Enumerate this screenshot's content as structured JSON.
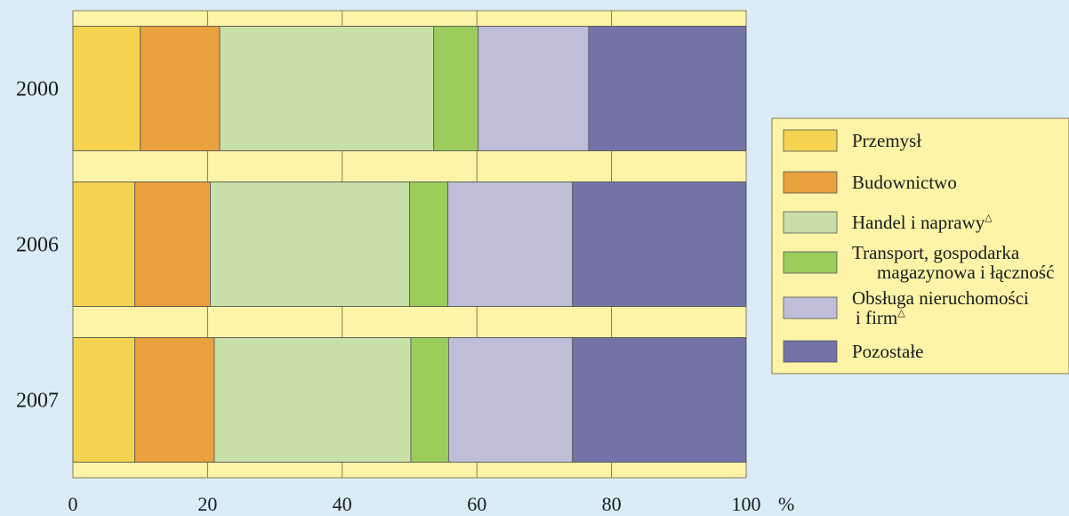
{
  "chart_data": {
    "type": "bar",
    "orientation": "horizontal",
    "stacked": true,
    "categories": [
      "2000",
      "2006",
      "2007"
    ],
    "series": [
      {
        "name": "Przemysł",
        "color": "#f5d24f",
        "values": [
          10,
          9.2,
          9.2
        ]
      },
      {
        "name": "Budownictwo",
        "color": "#e8a13c",
        "values": [
          11.8,
          11.2,
          11.8
        ]
      },
      {
        "name": "Handel i naprawy",
        "name_mark": "△",
        "color": "#c8dfa8",
        "values": [
          31.8,
          29.6,
          29.2
        ]
      },
      {
        "name": "Transport, gospodarka\nmagazynowa i łączność",
        "color": "#9ccc5c",
        "values": [
          6.6,
          5.7,
          5.6
        ]
      },
      {
        "name": "Obsługa nieruchomości\ni firm",
        "name_mark": "△",
        "color": "#c0bdd8",
        "values": [
          16.4,
          18.5,
          18.4
        ]
      },
      {
        "name": "Pozostałe",
        "color": "#7373a8",
        "values": [
          23.4,
          25.8,
          25.8
        ]
      }
    ],
    "xlim": [
      0,
      100
    ],
    "x_ticks": [
      "0",
      "20",
      "40",
      "60",
      "80",
      "100"
    ],
    "x_unit": "%",
    "grid": true,
    "legend_position": "right"
  },
  "colors": {
    "background": "#d9ecf8",
    "plot_background": "#fdf4a8",
    "grid": "#8a7a4a"
  }
}
